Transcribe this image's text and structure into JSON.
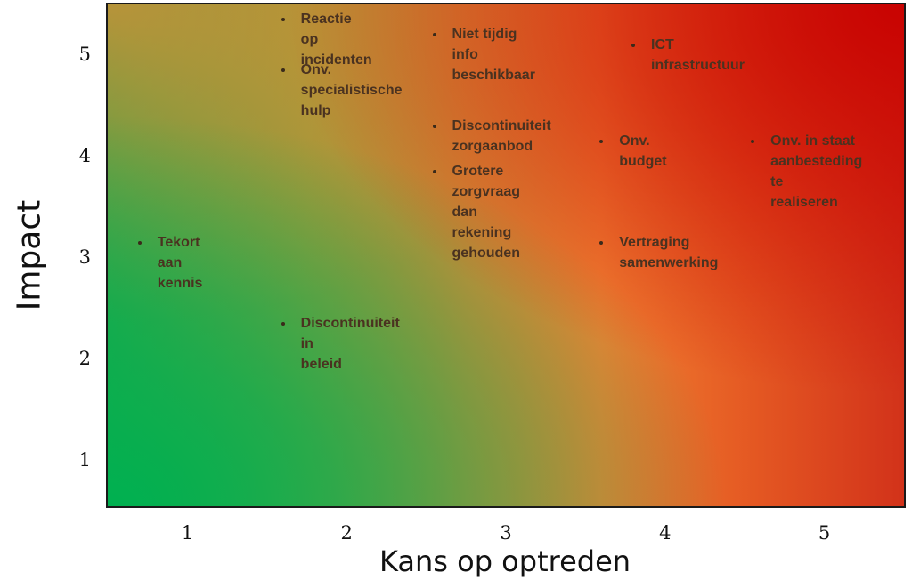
{
  "chart_data": {
    "type": "scatter",
    "title": "",
    "xlabel": "Kans op optreden",
    "ylabel": "Impact",
    "xlim": [
      0.5,
      5.5
    ],
    "ylim": [
      0.55,
      5.5
    ],
    "xticks": [
      "1",
      "2",
      "3",
      "4",
      "5"
    ],
    "yticks": [
      "1",
      "2",
      "3",
      "4",
      "5"
    ],
    "grid": false,
    "legend": "none",
    "background": "gradient from green (bottom-left) through orange to red (top-right)",
    "colors": {
      "green": "#00b050",
      "orange": "#f28535",
      "red": "#c80000",
      "label_text": "#4a3220"
    },
    "points": [
      {
        "label": "Reactie op\nincidenten",
        "x": 1.6,
        "y": 5.35
      },
      {
        "label": "Onv. specialistische\nhulp",
        "x": 1.6,
        "y": 4.85
      },
      {
        "label": "Niet tijdig info\nbeschikbaar",
        "x": 2.55,
        "y": 5.2
      },
      {
        "label": "ICT infrastructuur",
        "x": 3.8,
        "y": 5.1
      },
      {
        "label": "Discontinuiteit\nzorgaanbod",
        "x": 2.55,
        "y": 4.3
      },
      {
        "label": "Grotere zorgvraag\ndan rekening\ngehouden",
        "x": 2.55,
        "y": 3.85
      },
      {
        "label": "Onv. budget",
        "x": 3.6,
        "y": 4.15
      },
      {
        "label": "Onv. in staat\naanbesteding te\nrealiseren",
        "x": 4.55,
        "y": 4.15
      },
      {
        "label": "Tekort aan kennis",
        "x": 0.7,
        "y": 3.15
      },
      {
        "label": "Vertraging\nsamenwerking",
        "x": 3.6,
        "y": 3.15
      },
      {
        "label": "Discontinuiteit in\nbeleid",
        "x": 1.6,
        "y": 2.35
      }
    ]
  }
}
